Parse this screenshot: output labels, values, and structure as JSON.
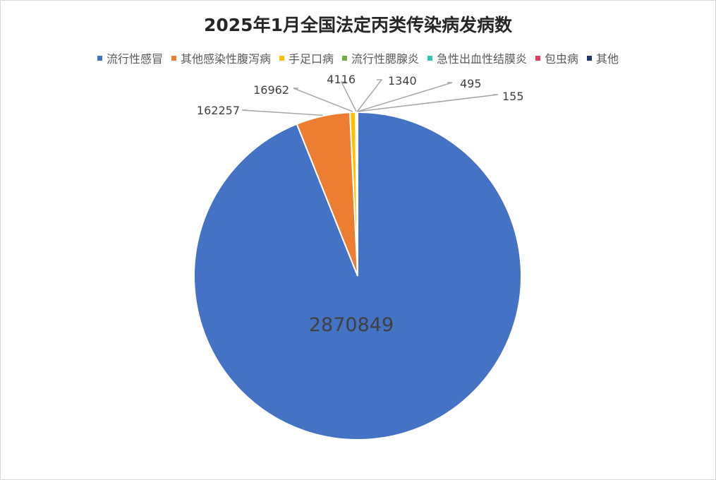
{
  "chart_data": {
    "type": "pie",
    "title": "2025年1月全国法定丙类传染病发病数",
    "legend_position": "top",
    "slices": [
      {
        "name": "流行性感冒",
        "value": 2870849,
        "color": "#4472c4"
      },
      {
        "name": "其他感染性腹泻病",
        "value": 162257,
        "color": "#ed7d31"
      },
      {
        "name": "手足口病",
        "value": 16962,
        "color": "#ffc000"
      },
      {
        "name": "流行性腮腺炎",
        "value": 4116,
        "color": "#70ad47"
      },
      {
        "name": "急性出血性结膜炎",
        "value": 1340,
        "color": "#2ec4b6"
      },
      {
        "name": "包虫病",
        "value": 495,
        "color": "#e0405e"
      },
      {
        "name": "其他",
        "value": 155,
        "color": "#203864"
      }
    ],
    "data_labels": [
      "2870849",
      "162257",
      "16962",
      "4116",
      "1340",
      "495",
      "155"
    ]
  }
}
